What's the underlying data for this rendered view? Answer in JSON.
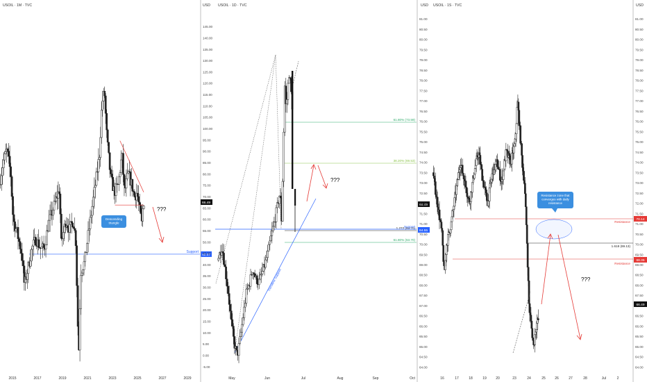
{
  "chart_data": [
    {
      "type": "candlestick",
      "symbol_label": "USOIL · 1M · TVC",
      "currency_label": "USD",
      "y_ticks": [],
      "x_ticks": [
        "2015",
        "2017",
        "2019",
        "2021",
        "2023",
        "2025",
        "2027",
        "2029"
      ],
      "ylim": [
        -5,
        150
      ],
      "x": [
        2014.0,
        2030.0
      ],
      "annotations": {
        "callout": "Descending\ntriangle",
        "question": "???",
        "support": "Support",
        "support_value": "42.57",
        "last_value": "66.49"
      },
      "price_path": [
        [
          2014.0,
          75
        ],
        [
          2014.3,
          85
        ],
        [
          2014.6,
          90
        ],
        [
          2014.9,
          80
        ],
        [
          2015.1,
          60
        ],
        [
          2015.4,
          55
        ],
        [
          2015.8,
          45
        ],
        [
          2016.0,
          32
        ],
        [
          2016.3,
          40
        ],
        [
          2016.6,
          48
        ],
        [
          2016.9,
          52
        ],
        [
          2017.3,
          48
        ],
        [
          2017.6,
          48
        ],
        [
          2017.9,
          58
        ],
        [
          2018.3,
          65
        ],
        [
          2018.6,
          70
        ],
        [
          2018.8,
          73
        ],
        [
          2018.95,
          50
        ],
        [
          2019.3,
          60
        ],
        [
          2019.6,
          56
        ],
        [
          2019.9,
          60
        ],
        [
          2020.1,
          52
        ],
        [
          2020.25,
          20
        ],
        [
          2020.33,
          0
        ],
        [
          2020.5,
          38
        ],
        [
          2020.8,
          42
        ],
        [
          2021.0,
          50
        ],
        [
          2021.4,
          65
        ],
        [
          2021.8,
          80
        ],
        [
          2022.0,
          88
        ],
        [
          2022.2,
          110
        ],
        [
          2022.4,
          115
        ],
        [
          2022.6,
          95
        ],
        [
          2022.9,
          78
        ],
        [
          2023.2,
          72
        ],
        [
          2023.5,
          75
        ],
        [
          2023.8,
          88
        ],
        [
          2024.0,
          72
        ],
        [
          2024.3,
          80
        ],
        [
          2024.6,
          75
        ],
        [
          2024.8,
          70
        ],
        [
          2025.0,
          72
        ],
        [
          2025.2,
          65
        ],
        [
          2025.4,
          58
        ],
        [
          2025.5,
          68
        ]
      ]
    },
    {
      "type": "candlestick",
      "symbol_label": "USOIL · 1D · TVC",
      "currency_label": "USD",
      "y_ticks": [
        "145.00",
        "140.00",
        "135.00",
        "130.00",
        "125.00",
        "120.00",
        "115.00",
        "110.00",
        "105.00",
        "100.00",
        "95.00",
        "90.00",
        "85.00",
        "80.00",
        "75.00",
        "70.00",
        "65.00",
        "60.00",
        "55.00",
        "50.00",
        "45.00",
        "40.00",
        "35.00",
        "30.00",
        "25.00",
        "20.00",
        "15.00",
        "10.00",
        "5.00",
        "0.00",
        "-5.00"
      ],
      "x_ticks": [
        "May",
        "Jun",
        "Jul",
        "Aug",
        "Sep",
        "Oct"
      ],
      "ylim": [
        -5,
        150
      ],
      "x": [
        0,
        100
      ],
      "annotations": {
        "fib_618_upper": "61.80% (73.59)",
        "fib_382": "38.20% (69.53)",
        "fib_1272": "1.272 (64.70)",
        "fib_618_lower": "61.80% (63.70)",
        "support": "Support",
        "trendline": "Trendline Support",
        "question": "???",
        "last_value": "66.49",
        "support_value": "64.55"
      }
    },
    {
      "type": "candlestick",
      "symbol_label": "USOIL · 1S · TVC",
      "currency_label": "USD",
      "y_ticks": [
        "81.00",
        "80.50",
        "80.00",
        "79.50",
        "79.00",
        "78.50",
        "78.00",
        "77.50",
        "77.00",
        "76.50",
        "76.00",
        "75.50",
        "75.00",
        "74.50",
        "74.00",
        "73.50",
        "73.00",
        "72.50",
        "72.00",
        "71.50",
        "71.00",
        "70.50",
        "70.00",
        "69.50",
        "69.00",
        "68.50",
        "68.00",
        "67.50",
        "67.00",
        "66.50",
        "66.00",
        "65.50",
        "65.00",
        "64.50",
        "64.00"
      ],
      "x_ticks": [
        "16",
        "17",
        "18",
        "19",
        "20",
        "23",
        "24",
        "25",
        "26",
        "27",
        "28",
        "Jul",
        "2"
      ],
      "ylim": [
        63.75,
        81.25
      ],
      "x": [
        0,
        100
      ],
      "annotations": {
        "resistance_upper": "Resistance",
        "resistance_upper_value": "70.14",
        "resistance_lower": "Resistance",
        "resistance_lower_value": "68.35",
        "fib_1618": "1.618 (69.13)",
        "callout": "Resistance zone that\nconverges with daily\nresistance",
        "question": "???",
        "last_value": "66.49"
      }
    }
  ]
}
